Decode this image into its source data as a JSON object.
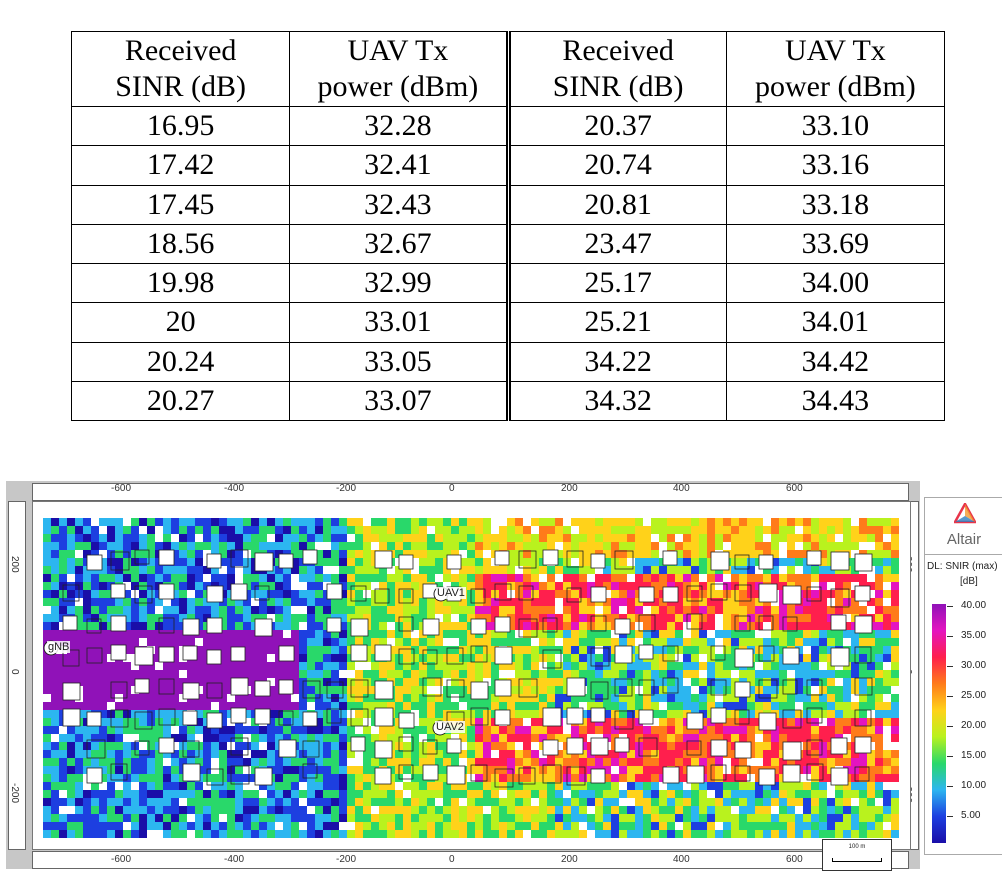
{
  "table": {
    "headers": [
      [
        "Received",
        "SINR (dB)"
      ],
      [
        "UAV Tx",
        "power (dBm)"
      ],
      [
        "Received",
        "SINR (dB)"
      ],
      [
        "UAV Tx",
        "power (dBm)"
      ]
    ],
    "rows": [
      [
        "16.95",
        "32.28",
        "20.37",
        "33.10"
      ],
      [
        "17.42",
        "32.41",
        "20.74",
        "33.16"
      ],
      [
        "17.45",
        "32.43",
        "20.81",
        "33.18"
      ],
      [
        "18.56",
        "32.67",
        "23.47",
        "33.69"
      ],
      [
        "19.98",
        "32.99",
        "25.17",
        "34.00"
      ],
      [
        "20",
        "33.01",
        "25.21",
        "34.01"
      ],
      [
        "20.24",
        "33.05",
        "34.22",
        "34.42"
      ],
      [
        "20.27",
        "33.07",
        "34.32",
        "34.43"
      ]
    ]
  },
  "map": {
    "x_ticks": [
      "-600",
      "-400",
      "-200",
      "0",
      "200",
      "400",
      "600"
    ],
    "y_ticks": [
      "200",
      "0",
      "-200"
    ],
    "labels": {
      "gnb": "gNB",
      "uav1": "UAV1",
      "uav2": "UAV2"
    },
    "scale_label": "100 m"
  },
  "legend": {
    "brand": "Altair",
    "title": "DL: SNIR (max)",
    "unit": "[dB]",
    "ticks": [
      "40.00",
      "35.00",
      "30.00",
      "25.00",
      "20.00",
      "15.00",
      "10.00",
      "5.00"
    ],
    "colors": [
      "#1a0ea8",
      "#1d3fe0",
      "#2cb6f0",
      "#29d86a",
      "#b9f21e",
      "#ffd21a",
      "#ff7b1a",
      "#ff1f4d",
      "#e414c0",
      "#9012b8"
    ]
  }
}
